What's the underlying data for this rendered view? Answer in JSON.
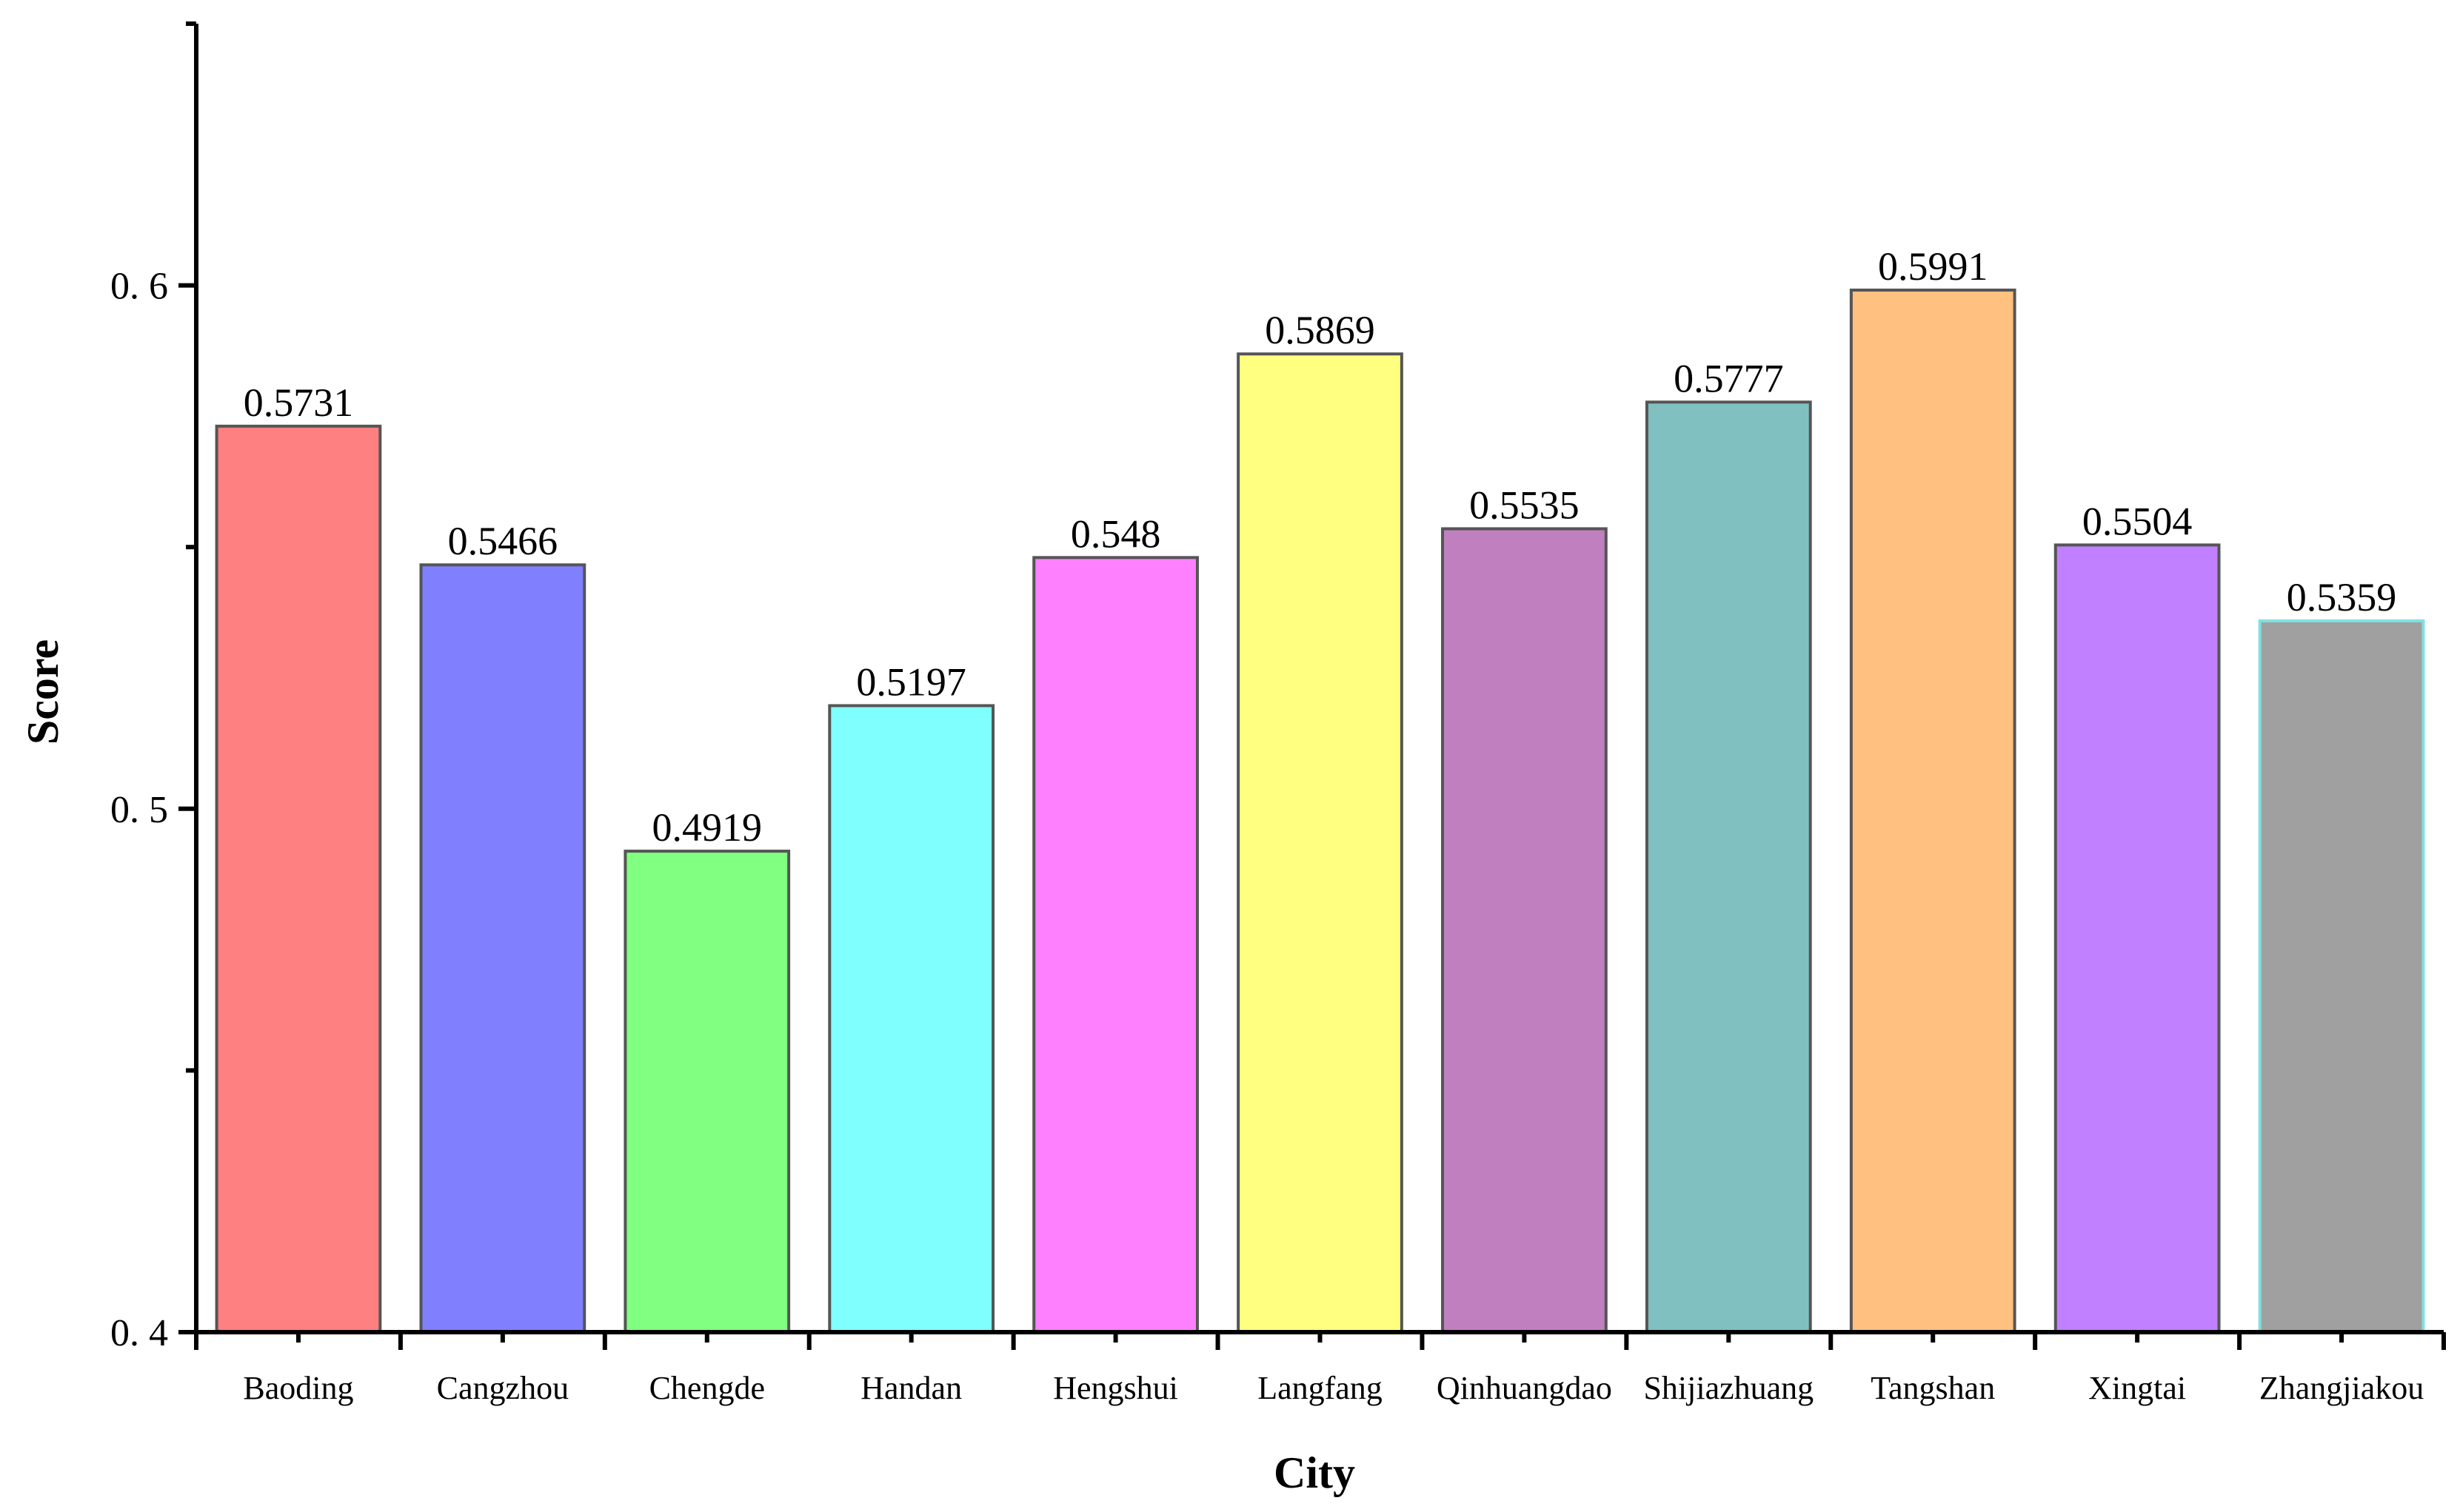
{
  "chart_data": {
    "type": "bar",
    "title": "",
    "xlabel": "City",
    "ylabel": "Score",
    "ylim": [
      0.4,
      0.65
    ],
    "yticks": [
      0.4,
      0.5,
      0.6
    ],
    "ytick_labels": [
      "0. 4",
      "0. 5",
      "0. 6"
    ],
    "grid": false,
    "categories": [
      "Baoding",
      "Cangzhou",
      "Chengde",
      "Handan",
      "Hengshui",
      "Langfang",
      "Qinhuangdao",
      "Shijiazhuang",
      "Tangshan",
      "Xingtai",
      "Zhangjiakou"
    ],
    "values": [
      0.5731,
      0.5466,
      0.4919,
      0.5197,
      0.548,
      0.5869,
      0.5535,
      0.5777,
      0.5991,
      0.5504,
      0.5359
    ],
    "value_labels": [
      "0.5731",
      "0.5466",
      "0.4919",
      "0.5197",
      "0.548",
      "0.5869",
      "0.5535",
      "0.5777",
      "0.5991",
      "0.5504",
      "0.5359"
    ],
    "colors": [
      "#ff8080",
      "#8080ff",
      "#80ff80",
      "#80ffff",
      "#ff80ff",
      "#ffff80",
      "#c080c0",
      "#80c0c0",
      "#ffc080",
      "#c080ff",
      "#a0a0a0"
    ]
  }
}
